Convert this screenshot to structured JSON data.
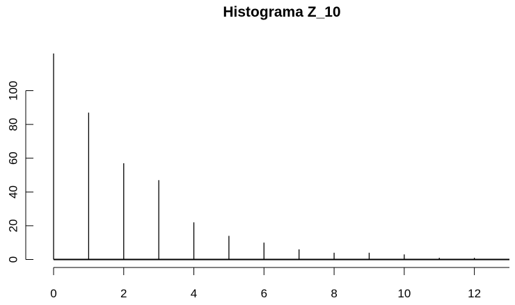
{
  "chart_data": {
    "type": "bar",
    "title": "Histograma Z_10",
    "xlabel": "",
    "ylabel": "",
    "x": [
      0,
      1,
      2,
      3,
      4,
      5,
      6,
      7,
      8,
      9,
      10,
      11,
      12,
      13
    ],
    "values": [
      122,
      87,
      57,
      47,
      22,
      14,
      10,
      6,
      4,
      4,
      3,
      1,
      1,
      0
    ],
    "xlim": [
      0,
      13
    ],
    "ylim": [
      0,
      122
    ],
    "x_ticks": [
      "0",
      "2",
      "4",
      "6",
      "8",
      "10",
      "12"
    ],
    "y_ticks": [
      "0",
      "20",
      "40",
      "60",
      "80",
      "100"
    ],
    "grid": false,
    "colors": {
      "bars": "#000000",
      "axes": "#000000"
    }
  }
}
